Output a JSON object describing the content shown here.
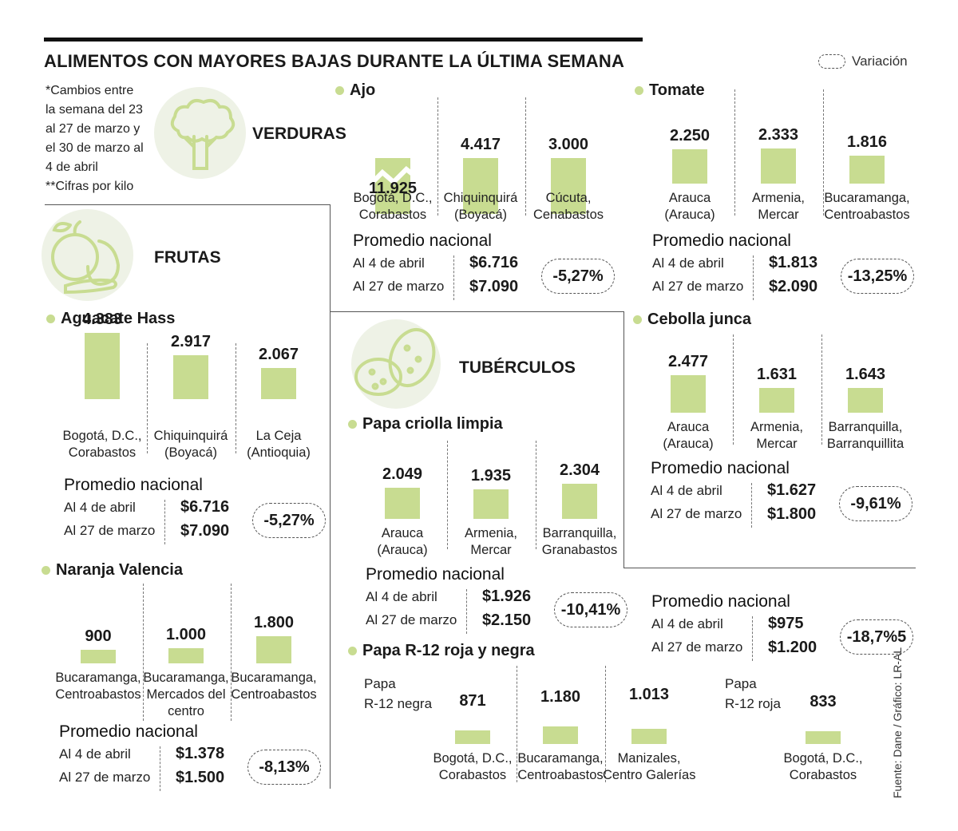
{
  "title": "ALIMENTOS CON MAYORES BAJAS DURANTE LA ÚLTIMA SEMANA",
  "legend_label": "Variación",
  "note_lines": [
    "*Cambios entre",
    "la semana del 23",
    "al 27 de marzo y",
    "el 30 de marzo al",
    "4 de abril"
  ],
  "note_units": "**Cifras por kilo",
  "source": "Fuente: Dane / Gráfico: LR-AL",
  "colors": {
    "bar": "#c8dc91",
    "icon_bg": "#eef2e6",
    "icon_stroke": "#c8dc91"
  },
  "sections": {
    "verduras": "VERDURAS",
    "frutas": "FRUTAS",
    "tuberculos": "TUBÉRCULOS"
  },
  "icons": {
    "verduras": "broccoli-icon",
    "frutas": "fruits-icon",
    "tuberculos": "potato-icon"
  },
  "promedio_label": "Promedio nacional",
  "date_now": "Al 4 de abril",
  "date_prev": "Al 27 de marzo",
  "chart_data": [
    {
      "type": "bar",
      "title": "Ajo",
      "categories": [
        "Bogotá, D.C., Corabastos",
        "Chiquinquirá (Boyacá)",
        "Cúcuta, Cenabastos"
      ],
      "city_lines": [
        [
          "Bogotá, D.C.,",
          "Corabastos"
        ],
        [
          "Chiquinquirá",
          "(Boyacá)"
        ],
        [
          "Cúcuta,",
          "Cenabastos"
        ]
      ],
      "values": [
        11925,
        4417,
        3000
      ],
      "labels": [
        "11.925",
        "4.417",
        "3.000"
      ],
      "axis_break": true,
      "promedio": {
        "now": "$6.716",
        "prev": "$7.090",
        "variation": "-5,27%"
      }
    },
    {
      "type": "bar",
      "title": "Tomate",
      "categories": [
        "Arauca (Arauca)",
        "Armenia, Mercar",
        "Bucaramanga, Centroabastos"
      ],
      "city_lines": [
        [
          "Arauca",
          "(Arauca)"
        ],
        [
          "Armenia,",
          "Mercar"
        ],
        [
          "Bucaramanga,",
          "Centroabastos"
        ]
      ],
      "values": [
        2250,
        2333,
        1816
      ],
      "labels": [
        "2.250",
        "2.333",
        "1.816"
      ],
      "promedio": {
        "now": "$1.813",
        "prev": "$2.090",
        "variation": "-13,25%"
      }
    },
    {
      "type": "bar",
      "title": "Aguacate Hass",
      "categories": [
        "Bogotá, D.C., Corabastos",
        "Chiquinquirá (Boyacá)",
        "La Ceja (Antioquia)"
      ],
      "city_lines": [
        [
          "Bogotá, D.C.,",
          "Corabastos"
        ],
        [
          "Chiquinquirá",
          "(Boyacá)"
        ],
        [
          "La Ceja",
          "(Antioquia)"
        ]
      ],
      "values": [
        4383,
        2917,
        2067
      ],
      "labels": [
        "4.383",
        "2.917",
        "2.067"
      ],
      "promedio": {
        "now": "$6.716",
        "prev": "$7.090",
        "variation": "-5,27%"
      }
    },
    {
      "type": "bar",
      "title": "Naranja Valencia",
      "categories": [
        "Bucaramanga, Centroabastos",
        "Bucaramanga, Mercados del centro",
        "Bucaramanga, Centroabastos"
      ],
      "city_lines": [
        [
          "Bucaramanga,",
          "Centroabastos"
        ],
        [
          "Bucaramanga,",
          "Mercados del",
          "centro"
        ],
        [
          "Bucaramanga,",
          "Centroabastos"
        ]
      ],
      "values": [
        900,
        1000,
        1800
      ],
      "labels": [
        "900",
        "1.000",
        "1.800"
      ],
      "promedio": {
        "now": "$1.378",
        "prev": "$1.500",
        "variation": "-8,13%"
      }
    },
    {
      "type": "bar",
      "title": "Cebolla junca",
      "categories": [
        "Arauca (Arauca)",
        "Armenia, Mercar",
        "Barranquilla, Barranquillita"
      ],
      "city_lines": [
        [
          "Arauca",
          "(Arauca)"
        ],
        [
          "Armenia,",
          "Mercar"
        ],
        [
          "Barranquilla,",
          "Barranquillita"
        ]
      ],
      "values": [
        2477,
        1631,
        1643
      ],
      "labels": [
        "2.477",
        "1.631",
        "1.643"
      ],
      "promedio": {
        "now": "$1.627",
        "prev": "$1.800",
        "variation": "-9,61%"
      }
    },
    {
      "type": "bar",
      "title": "Papa criolla limpia",
      "categories": [
        "Arauca (Arauca)",
        "Armenia, Mercar",
        "Barranquilla, Granabastos"
      ],
      "city_lines": [
        [
          "Arauca",
          "(Arauca)"
        ],
        [
          "Armenia,",
          "Mercar"
        ],
        [
          "Barranquilla,",
          "Granabastos"
        ]
      ],
      "values": [
        2049,
        1935,
        2304
      ],
      "labels": [
        "2.049",
        "1.935",
        "2.304"
      ],
      "promedio": {
        "now": "$1.926",
        "prev": "$2.150",
        "variation": "-10,41%"
      }
    },
    {
      "type": "bar",
      "title": "Papa R-12 roja y negra",
      "groups": [
        "Papa R-12 negra",
        "Papa R-12 roja"
      ],
      "group_lines": [
        [
          "Papa",
          "R-12 negra"
        ],
        [
          "Papa",
          "R-12 roja"
        ]
      ],
      "categories": [
        "Bogotá, D.C., Corabastos",
        "Bucaramanga, Centroabastos",
        "Manizales, Centro Galerías",
        "Bogotá, D.C., Corabastos"
      ],
      "city_lines": [
        [
          "Bogotá, D.C.,",
          "Corabastos"
        ],
        [
          "Bucaramanga,",
          "Centroabastos"
        ],
        [
          "Manizales,",
          "Centro Galerías"
        ],
        [
          "Bogotá, D.C.,",
          "Corabastos"
        ]
      ],
      "values": [
        871,
        1180,
        1013,
        833
      ],
      "labels": [
        "871",
        "1.180",
        "1.013",
        "833"
      ],
      "promedio": {
        "now": "$975",
        "prev": "$1.200",
        "variation": "-18,7%5"
      }
    }
  ]
}
